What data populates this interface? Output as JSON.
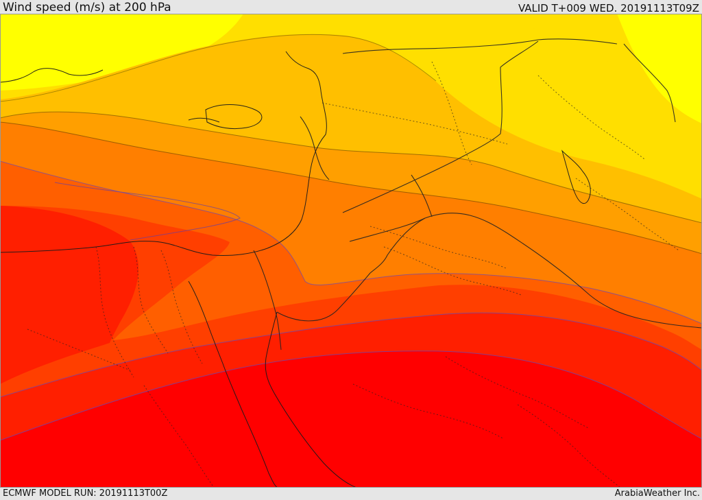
{
  "header": {
    "title": "Wind speed (m/s) at 200 hPa",
    "valid_time": "VALID T+009 WED. 20191113T09Z"
  },
  "footer": {
    "model_run": "ECMWF MODEL RUN: 20191113T00Z",
    "credit": "ArabiaWeather Inc."
  },
  "map": {
    "variable": "wind speed",
    "units": "m/s",
    "pressure_level": "200 hPa",
    "palette": {
      "yellow": "#ffff00",
      "gold": "#ffdf00",
      "amber": "#ffbf00",
      "orange_light": "#ff9f00",
      "orange": "#ff7f00",
      "orange_dark": "#ff5f00",
      "red_orange": "#ff3f00",
      "red": "#ff1f00",
      "red_deep": "#ff0000"
    }
  }
}
